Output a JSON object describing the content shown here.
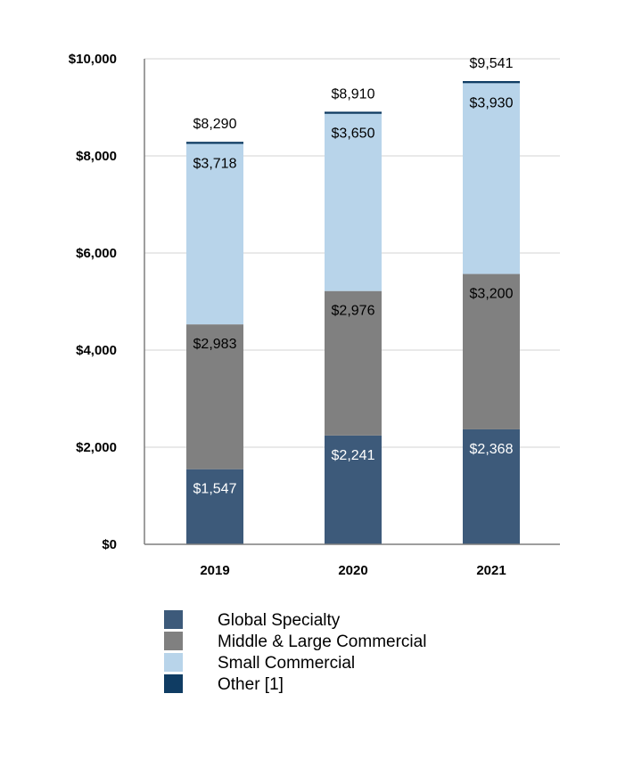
{
  "chart_data": {
    "type": "bar",
    "stacked": true,
    "title": "",
    "xlabel": "",
    "ylabel": "",
    "ylim": [
      0,
      10000
    ],
    "yticks": [
      0,
      2000,
      4000,
      6000,
      8000,
      10000
    ],
    "ytick_labels": [
      "$0",
      "$2,000",
      "$4,000",
      "$6,000",
      "$8,000",
      "$10,000"
    ],
    "grid": true,
    "legend_position": "bottom",
    "categories": [
      "2019",
      "2020",
      "2021"
    ],
    "series": [
      {
        "name": "Global Specialty",
        "color": "#3d5a7a",
        "values": [
          1547,
          2241,
          2368
        ],
        "labels": [
          "$1,547",
          "$2,241",
          "$2,368"
        ],
        "label_color": "#ffffff"
      },
      {
        "name": "Middle & Large Commercial",
        "color": "#808080",
        "values": [
          2983,
          2976,
          3200
        ],
        "labels": [
          "$2,983",
          "$2,976",
          "$3,200"
        ],
        "label_color": "#000000"
      },
      {
        "name": "Small Commercial",
        "color": "#b8d4ea",
        "values": [
          3718,
          3650,
          3930
        ],
        "labels": [
          "$3,718",
          "$3,650",
          "$3,930"
        ],
        "label_color": "#000000"
      },
      {
        "name": "Other [1]",
        "color": "#0f3c63",
        "values": [
          42,
          43,
          43
        ],
        "labels": [],
        "label_color": "#000000"
      }
    ],
    "totals": [
      8290,
      8910,
      9541
    ],
    "total_labels": [
      "$8,290",
      "$8,910",
      "$9,541"
    ],
    "colors": {
      "grid": "#e2e2e2",
      "axis": "#7f7f7f"
    }
  }
}
